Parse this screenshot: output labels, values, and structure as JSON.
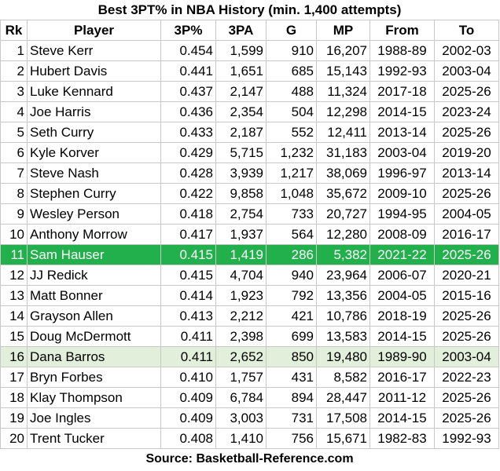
{
  "title": "Best 3PT% in NBA History (min. 1,400 attempts)",
  "columns": [
    "Rk",
    "Player",
    "3P%",
    "3PA",
    "G",
    "MP",
    "From",
    "To"
  ],
  "rows": [
    {
      "rk": "1",
      "player": "Steve Kerr",
      "pct": "0.454",
      "pa": "1,599",
      "g": "910",
      "mp": "16,207",
      "from": "1988-89",
      "to": "2002-03",
      "hl": ""
    },
    {
      "rk": "2",
      "player": "Hubert Davis",
      "pct": "0.441",
      "pa": "1,651",
      "g": "685",
      "mp": "15,143",
      "from": "1992-93",
      "to": "2003-04",
      "hl": ""
    },
    {
      "rk": "3",
      "player": "Luke Kennard",
      "pct": "0.437",
      "pa": "2,147",
      "g": "488",
      "mp": "11,324",
      "from": "2017-18",
      "to": "2025-26",
      "hl": ""
    },
    {
      "rk": "4",
      "player": "Joe Harris",
      "pct": "0.436",
      "pa": "2,354",
      "g": "504",
      "mp": "12,298",
      "from": "2014-15",
      "to": "2023-24",
      "hl": ""
    },
    {
      "rk": "5",
      "player": "Seth Curry",
      "pct": "0.433",
      "pa": "2,187",
      "g": "552",
      "mp": "12,411",
      "from": "2013-14",
      "to": "2025-26",
      "hl": ""
    },
    {
      "rk": "6",
      "player": "Kyle Korver",
      "pct": "0.429",
      "pa": "5,715",
      "g": "1,232",
      "mp": "31,183",
      "from": "2003-04",
      "to": "2019-20",
      "hl": ""
    },
    {
      "rk": "7",
      "player": "Steve Nash",
      "pct": "0.428",
      "pa": "3,939",
      "g": "1,217",
      "mp": "38,069",
      "from": "1996-97",
      "to": "2013-14",
      "hl": ""
    },
    {
      "rk": "8",
      "player": "Stephen Curry",
      "pct": "0.422",
      "pa": "9,858",
      "g": "1,048",
      "mp": "35,672",
      "from": "2009-10",
      "to": "2025-26",
      "hl": ""
    },
    {
      "rk": "9",
      "player": "Wesley Person",
      "pct": "0.418",
      "pa": "2,754",
      "g": "733",
      "mp": "20,727",
      "from": "1994-95",
      "to": "2004-05",
      "hl": ""
    },
    {
      "rk": "10",
      "player": "Anthony Morrow",
      "pct": "0.417",
      "pa": "1,937",
      "g": "564",
      "mp": "12,280",
      "from": "2008-09",
      "to": "2016-17",
      "hl": ""
    },
    {
      "rk": "11",
      "player": "Sam Hauser",
      "pct": "0.415",
      "pa": "1,419",
      "g": "286",
      "mp": "5,382",
      "from": "2021-22",
      "to": "2025-26",
      "hl": "green"
    },
    {
      "rk": "12",
      "player": "JJ Redick",
      "pct": "0.415",
      "pa": "4,704",
      "g": "940",
      "mp": "23,964",
      "from": "2006-07",
      "to": "2020-21",
      "hl": ""
    },
    {
      "rk": "13",
      "player": "Matt Bonner",
      "pct": "0.414",
      "pa": "1,923",
      "g": "792",
      "mp": "13,356",
      "from": "2004-05",
      "to": "2015-16",
      "hl": ""
    },
    {
      "rk": "14",
      "player": "Grayson Allen",
      "pct": "0.413",
      "pa": "2,212",
      "g": "421",
      "mp": "10,786",
      "from": "2018-19",
      "to": "2025-26",
      "hl": ""
    },
    {
      "rk": "15",
      "player": "Doug McDermott",
      "pct": "0.411",
      "pa": "2,398",
      "g": "699",
      "mp": "13,583",
      "from": "2014-15",
      "to": "2025-26",
      "hl": ""
    },
    {
      "rk": "16",
      "player": "Dana Barros",
      "pct": "0.411",
      "pa": "2,652",
      "g": "850",
      "mp": "19,480",
      "from": "1989-90",
      "to": "2003-04",
      "hl": "light"
    },
    {
      "rk": "17",
      "player": "Bryn Forbes",
      "pct": "0.410",
      "pa": "1,757",
      "g": "431",
      "mp": "8,582",
      "from": "2016-17",
      "to": "2022-23",
      "hl": ""
    },
    {
      "rk": "18",
      "player": "Klay Thompson",
      "pct": "0.409",
      "pa": "6,784",
      "g": "894",
      "mp": "28,447",
      "from": "2011-12",
      "to": "2025-26",
      "hl": ""
    },
    {
      "rk": "19",
      "player": "Joe Ingles",
      "pct": "0.409",
      "pa": "3,003",
      "g": "731",
      "mp": "17,508",
      "from": "2014-15",
      "to": "2025-26",
      "hl": ""
    },
    {
      "rk": "20",
      "player": "Trent Tucker",
      "pct": "0.408",
      "pa": "1,410",
      "g": "756",
      "mp": "15,671",
      "from": "1982-83",
      "to": "1992-93",
      "hl": ""
    }
  ],
  "source": "Source: Basketball-Reference.com",
  "colors": {
    "highlight_green": "#21b04b",
    "highlight_light": "#e2efda",
    "grid": "#c8c8c8"
  }
}
